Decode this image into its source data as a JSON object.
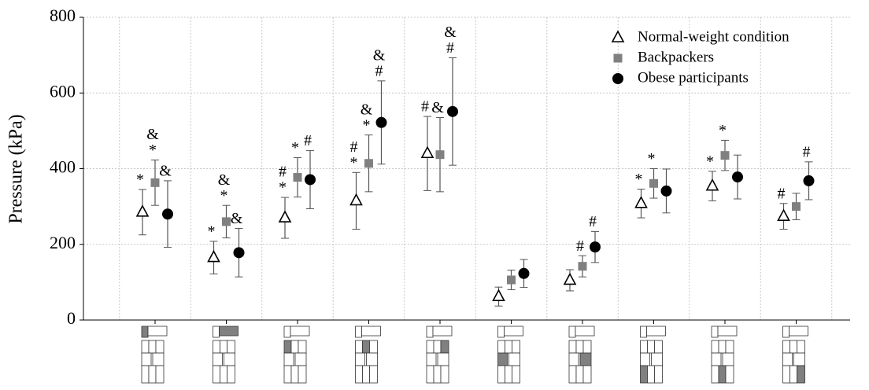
{
  "chart_data": {
    "type": "scatter",
    "y_label": "Pressure (kPa)",
    "categories": [
      null,
      null,
      null,
      null,
      null,
      null,
      null,
      null,
      null,
      null
    ],
    "ylim": [
      0,
      800
    ],
    "yticks": [
      0,
      200,
      400,
      600,
      800
    ],
    "grid": true,
    "legend": "upper right",
    "series": [
      {
        "name": "Normal-weight condition",
        "marker": "triangle",
        "color": "#000000",
        "values": [
          285,
          165,
          270,
          315,
          440,
          62,
          105,
          308,
          354,
          274
        ],
        "errors": [
          60,
          43,
          54,
          75,
          98,
          25,
          28,
          38,
          39,
          34
        ],
        "annotations": [
          [
            "*"
          ],
          [
            "*"
          ],
          [
            "*",
            "#"
          ],
          [
            "*",
            "#"
          ],
          [
            "#"
          ],
          [],
          [],
          [
            "*"
          ],
          [
            "*"
          ],
          [
            "#"
          ]
        ]
      },
      {
        "name": "Backpackers",
        "marker": "square",
        "color": "#808080",
        "values": [
          363,
          260,
          377,
          414,
          437,
          106,
          142,
          361,
          435,
          300
        ],
        "errors": [
          60,
          43,
          52,
          75,
          98,
          26,
          28,
          39,
          40,
          35
        ],
        "annotations": [
          [
            "*",
            "&"
          ],
          [
            "*",
            "&"
          ],
          [
            "*"
          ],
          [
            "*",
            "&"
          ],
          [
            "&"
          ],
          [],
          [
            "#"
          ],
          [
            "*"
          ],
          [
            "*"
          ],
          []
        ]
      },
      {
        "name": "Obese participants",
        "marker": "circle",
        "color": "#000000",
        "values": [
          280,
          178,
          371,
          522,
          551,
          123,
          193,
          341,
          378,
          368
        ],
        "errors": [
          88,
          64,
          77,
          110,
          142,
          37,
          41,
          58,
          58,
          50
        ],
        "annotations": [
          [
            "&"
          ],
          [
            "&"
          ],
          [
            "#"
          ],
          [
            "#",
            "&"
          ],
          [
            "#",
            "&"
          ],
          [],
          [
            "#"
          ],
          [],
          [],
          [
            "#"
          ]
        ]
      }
    ]
  }
}
